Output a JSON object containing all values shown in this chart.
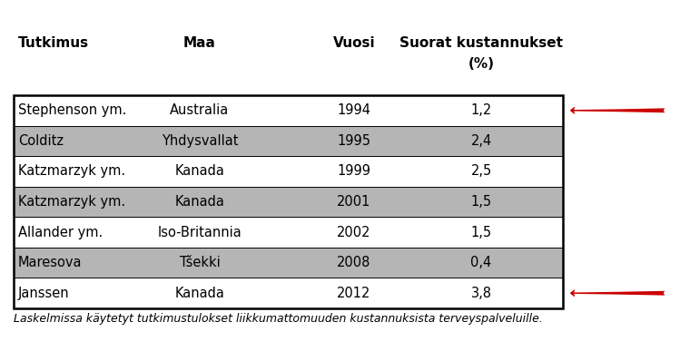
{
  "headers_line1": [
    "Tutkimus",
    "Maa",
    "Vuosi",
    "Suorat kustannukset"
  ],
  "headers_line2": [
    "",
    "",
    "",
    "(%)"
  ],
  "rows": [
    [
      "Stephenson ym.",
      "Australia",
      "1994",
      "1,2"
    ],
    [
      "Colditz",
      "Yhdysvallat",
      "1995",
      "2,4"
    ],
    [
      "Katzmarzyk ym.",
      "Kanada",
      "1999",
      "2,5"
    ],
    [
      "Katzmarzyk ym.",
      "Kanada",
      "2001",
      "1,5"
    ],
    [
      "Allander ym.",
      "Iso-Britannia",
      "2002",
      "1,5"
    ],
    [
      "Maresova",
      "Tšekki",
      "2008",
      "0,4"
    ],
    [
      "Janssen",
      "Kanada",
      "2012",
      "3,8"
    ]
  ],
  "arrow_rows": [
    0,
    6
  ],
  "row_colors": [
    "#ffffff",
    "#b5b5b5",
    "#ffffff",
    "#b5b5b5",
    "#ffffff",
    "#b5b5b5",
    "#ffffff"
  ],
  "arrow_color": "#cc0000",
  "footnote": "Laskelmissa käytetyt tutkimustulokset liikkumattomuuden kustannuksista terveyspalveluille.",
  "background_color": "#ffffff",
  "table_border_color": "#000000",
  "font_size": 10.5,
  "header_font_size": 11,
  "footnote_font_size": 9
}
